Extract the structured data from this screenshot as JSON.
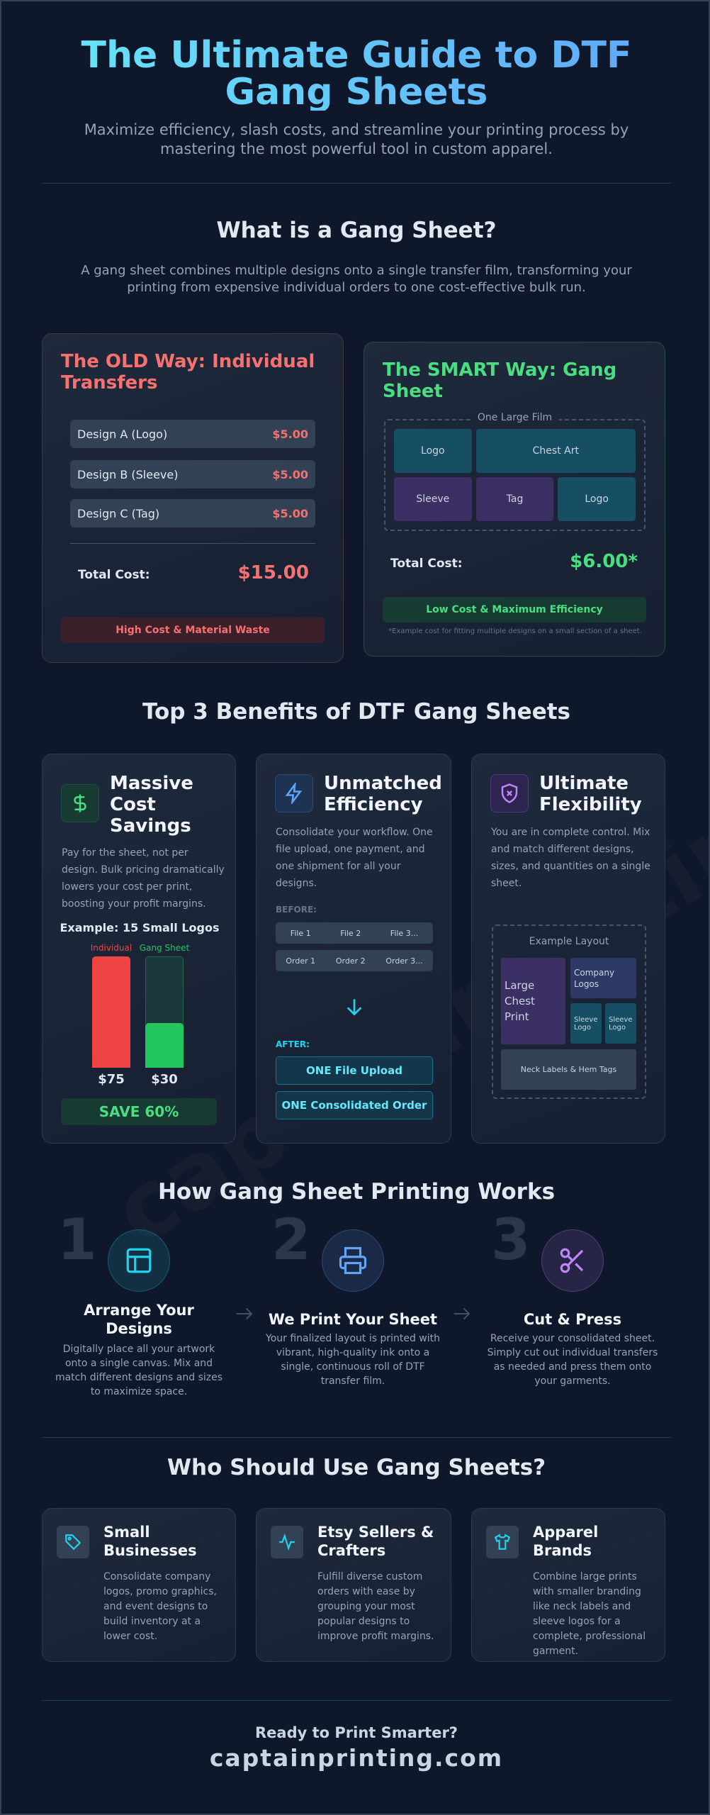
{
  "header": {
    "title": "The Ultimate Guide to DTF Gang Sheets",
    "subtitle": "Maximize efficiency, slash costs, and streamline your printing process by mastering the most powerful tool in custom apparel."
  },
  "intro": {
    "heading": "What is a Gang Sheet?",
    "text": "A gang sheet combines multiple designs onto a single transfer film, transforming your printing from expensive individual orders to one cost-effective bulk run."
  },
  "comparison": {
    "old": {
      "title": "The OLD Way: Individual Transfers",
      "items": [
        {
          "label": "Design A (Logo)",
          "price": "$5.00"
        },
        {
          "label": "Design B (Sleeve)",
          "price": "$5.00"
        },
        {
          "label": "Design C (Tag)",
          "price": "$5.00"
        }
      ],
      "total_label": "Total Cost:",
      "total": "$15.00",
      "badge": "High Cost & Material Waste"
    },
    "smart": {
      "title": "The SMART Way: Gang Sheet",
      "film_label": "One Large Film",
      "designs": [
        "Logo",
        "Chest Art",
        "Sleeve",
        "Tag",
        "Logo"
      ],
      "total_label": "Total Cost:",
      "total": "$6.00*",
      "badge": "Low Cost & Maximum Efficiency",
      "footnote": "*Example cost for fitting multiple designs on a small section of a sheet."
    }
  },
  "benefits": {
    "heading": "Top 3 Benefits of DTF Gang Sheets",
    "cards": [
      {
        "title": "Massive Cost Savings",
        "text": "Pay for the sheet, not per design. Bulk pricing dramatically lowers your cost per print, boosting your profit margins."
      },
      {
        "title": "Unmatched Efficiency",
        "text": "Consolidate your workflow. One file upload, one payment, and one shipment for all your designs."
      },
      {
        "title": "Ultimate Flexibility",
        "text": "You are in complete control. Mix and match different designs, sizes, and quantities on a single sheet."
      }
    ],
    "savings": {
      "example_title": "Example: 15 Small Logos",
      "bars": [
        {
          "name": "Individual",
          "value": 75,
          "value_label": "$75",
          "color": "#ef4444"
        },
        {
          "name": "Gang Sheet",
          "value": 30,
          "value_label": "$30",
          "color": "#22c55e"
        }
      ],
      "result": "SAVE 60%"
    },
    "efficiency": {
      "before_label": "BEFORE:",
      "files": [
        "File 1",
        "File 2",
        "File 3..."
      ],
      "orders": [
        "Order 1",
        "Order 2",
        "Order 3..."
      ],
      "after_label": "AFTER:",
      "after": [
        "ONE File Upload",
        "ONE Consolidated Order"
      ]
    },
    "flexibility": {
      "layout_label": "Example Layout",
      "blocks": [
        "Large Chest Print",
        "Company Logos",
        "Sleeve Logo",
        "Sleeve Logo",
        "Neck Labels & Hem Tags"
      ]
    }
  },
  "process": {
    "heading": "How Gang Sheet Printing Works",
    "steps": [
      {
        "number": 1,
        "title": "Arrange Your Designs",
        "text": "Digitally place all your artwork onto a single canvas. Mix and match different designs and sizes to maximize space."
      },
      {
        "number": 2,
        "title": "We Print Your Sheet",
        "text": "Your finalized layout is printed with vibrant, high-quality ink onto a single, continuous roll of DTF transfer film."
      },
      {
        "number": 3,
        "title": "Cut & Press",
        "text": "Receive your consolidated sheet. Simply cut out individual transfers as needed and press them onto your garments."
      }
    ]
  },
  "audience": {
    "heading": "Who Should Use Gang Sheets?",
    "cards": [
      {
        "title": "Small Businesses",
        "text": "Consolidate company logos, promo graphics, and event designs to build inventory at a lower cost."
      },
      {
        "title": "Etsy Sellers & Crafters",
        "text": "Fulfill diverse custom orders with ease by grouping your most popular designs to improve profit margins."
      },
      {
        "title": "Apparel Brands",
        "text": "Combine large prints with smaller branding like neck labels and sleeve logos for a complete, professional garment."
      }
    ]
  },
  "footer": {
    "cta": "Ready to Print Smarter?",
    "domain": "captainprinting.com"
  }
}
